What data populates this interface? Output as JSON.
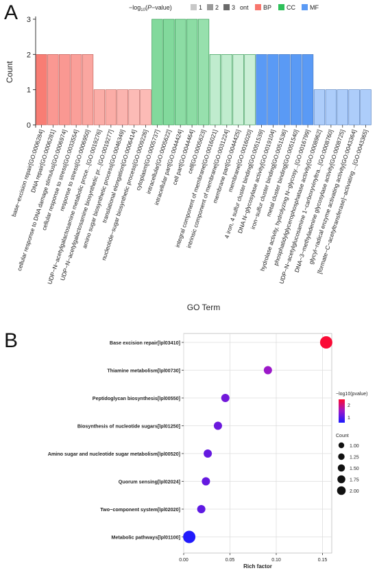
{
  "panels": {
    "a_label": "A",
    "b_label": "B"
  },
  "chart_data": [
    {
      "type": "bar",
      "xlabel": "GO Term",
      "ylabel": "Count",
      "ylim": [
        0,
        3
      ],
      "yticks": [
        0,
        1,
        2,
        3
      ],
      "legend": {
        "placement": "top",
        "title_prefix": "−log",
        "title_sub": "10",
        "title_mid": "(",
        "title_italic": "P",
        "title_suffix": "−value)",
        "shade_items": [
          "1",
          "2",
          "3"
        ],
        "ont_label": "ont",
        "ont_items": [
          {
            "label": "BP",
            "color": "#f8766d"
          },
          {
            "label": "CC",
            "color": "#2ec05a"
          },
          {
            "label": "MF",
            "color": "#5a9af5"
          }
        ]
      },
      "bars": [
        {
          "term": "base−excision repair[GO:0006284]",
          "count": 2,
          "ont": "BP",
          "shade": 0.95
        },
        {
          "term": "DNA repair[GO:0006281]",
          "count": 2,
          "ont": "BP",
          "shade": 0.75
        },
        {
          "term": "cellular response to DNA damage stimulus[GO:0006974]",
          "count": 2,
          "ont": "BP",
          "shade": 0.75
        },
        {
          "term": "cellular response to stress[GO:0033554]",
          "count": 2,
          "ont": "BP",
          "shade": 0.7
        },
        {
          "term": "response to stress[GO:0006950]",
          "count": 2,
          "ont": "BP",
          "shade": 0.65
        },
        {
          "term": "UDP−N−acetylgalactosamine metabolic proce...[GO:0019276]",
          "count": 1,
          "ont": "BP",
          "shade": 0.6
        },
        {
          "term": "UDP−N−acetylgalactosamine biosynthetic pr...[GO:0019277]",
          "count": 1,
          "ont": "BP",
          "shade": 0.6
        },
        {
          "term": "amino sugar biosynthetic process[GO:0046349]",
          "count": 1,
          "ont": "BP",
          "shade": 0.55
        },
        {
          "term": "translational elongation[GO:0006414]",
          "count": 1,
          "ont": "BP",
          "shade": 0.5
        },
        {
          "term": "nucleotide−sugar biosynthetic process[GO:0009226]",
          "count": 1,
          "ont": "BP",
          "shade": 0.5
        },
        {
          "term": "cytoplasm[GO:0005737]",
          "count": 3,
          "ont": "CC",
          "shade": 0.6
        },
        {
          "term": "intracellular[GO:0005622]",
          "count": 3,
          "ont": "CC",
          "shade": 0.6
        },
        {
          "term": "intracellular part[GO:0044424]",
          "count": 3,
          "ont": "CC",
          "shade": 0.55
        },
        {
          "term": "cell part[GO:0044464]",
          "count": 3,
          "ont": "CC",
          "shade": 0.55
        },
        {
          "term": "cell[GO:0005623]",
          "count": 3,
          "ont": "CC",
          "shade": 0.5
        },
        {
          "term": "integral component of membrane[GO:0016021]",
          "count": 2,
          "ont": "CC",
          "shade": 0.3
        },
        {
          "term": "intrinsic component of membrane[GO:0031224]",
          "count": 2,
          "ont": "CC",
          "shade": 0.3
        },
        {
          "term": "membrane part[GO:0044425]",
          "count": 2,
          "ont": "CC",
          "shade": 0.25
        },
        {
          "term": "membrane[GO:0016020]",
          "count": 2,
          "ont": "CC",
          "shade": 0.25
        },
        {
          "term": "4 iron, 4 sulfur cluster binding[GO:0051539]",
          "count": 2,
          "ont": "MF",
          "shade": 1.0
        },
        {
          "term": "DNA N−glycosylase activity[GO:0019104]",
          "count": 2,
          "ont": "MF",
          "shade": 1.0
        },
        {
          "term": "iron−sulfur cluster binding[GO:0051536]",
          "count": 2,
          "ont": "MF",
          "shade": 1.0
        },
        {
          "term": "metal cluster binding[GO:0051540]",
          "count": 2,
          "ont": "MF",
          "shade": 1.0
        },
        {
          "term": "hydrolase activity, hydrolyzing N−glycosy...[GO:0016799]",
          "count": 2,
          "ont": "MF",
          "shade": 1.0
        },
        {
          "term": "phosphatidylglycerophosphatase activity[GO:0008962]",
          "count": 1,
          "ont": "MF",
          "shade": 0.5
        },
        {
          "term": "UDP−N−acetylglucosamine 1−carboxyvinyltra...[GO:0008760]",
          "count": 1,
          "ont": "MF",
          "shade": 0.5
        },
        {
          "term": "DNA−3−methyladenine glycosylase activity[GO:0008725]",
          "count": 1,
          "ont": "MF",
          "shade": 0.5
        },
        {
          "term": "glycyl−radical enzyme activating activity[GO:0043364]",
          "count": 1,
          "ont": "MF",
          "shade": 0.5
        },
        {
          "term": "[formate−C−acetyltransferase]−activating ...[GO:0043365]",
          "count": 1,
          "ont": "MF",
          "shade": 0.5
        }
      ]
    },
    {
      "type": "scatter",
      "xlabel": "Rich factor",
      "xlim": [
        0,
        0.16
      ],
      "xticks": [
        "0.00",
        "0.05",
        "0.10",
        "0.15"
      ],
      "xtick_values": [
        0,
        0.05,
        0.1,
        0.15
      ],
      "color_legend": {
        "title": "−log10(pvalue)",
        "ticks": [
          "2",
          "1"
        ],
        "tick_values": [
          2,
          1
        ],
        "range": [
          0.55,
          2.45
        ],
        "low_color": "#1a1aff",
        "mid_color": "#9b18c9",
        "high_color": "#ff0a2e"
      },
      "size_legend": {
        "title": "Count",
        "labels": [
          "1.00",
          "1.25",
          "1.50",
          "1.75",
          "2.00"
        ],
        "values": [
          1.0,
          1.25,
          1.5,
          1.75,
          2.0
        ]
      },
      "points": [
        {
          "pathway": "Base excision repair[lpl03410]",
          "rich_factor": 0.154,
          "neglog10p": 2.4,
          "count": 2
        },
        {
          "pathway": "Thiamine metabolism[lpl00730]",
          "rich_factor": 0.091,
          "neglog10p": 1.5,
          "count": 1
        },
        {
          "pathway": "Peptidoglycan biosynthesis[lpl00550]",
          "rich_factor": 0.045,
          "neglog10p": 1.2,
          "count": 1
        },
        {
          "pathway": "Biosynthesis of nucleotide sugars[lpl01250]",
          "rich_factor": 0.037,
          "neglog10p": 1.15,
          "count": 1
        },
        {
          "pathway": "Amino sugar and nucleotide sugar metabolism[lpl00520]",
          "rich_factor": 0.026,
          "neglog10p": 1.1,
          "count": 1
        },
        {
          "pathway": "Quorum sensing[lpl02024]",
          "rich_factor": 0.024,
          "neglog10p": 1.1,
          "count": 1
        },
        {
          "pathway": "Two−component system[lpl02020]",
          "rich_factor": 0.019,
          "neglog10p": 1.05,
          "count": 1
        },
        {
          "pathway": "Metabolic pathways[lpl01100]",
          "rich_factor": 0.006,
          "neglog10p": 0.6,
          "count": 2
        }
      ]
    }
  ]
}
